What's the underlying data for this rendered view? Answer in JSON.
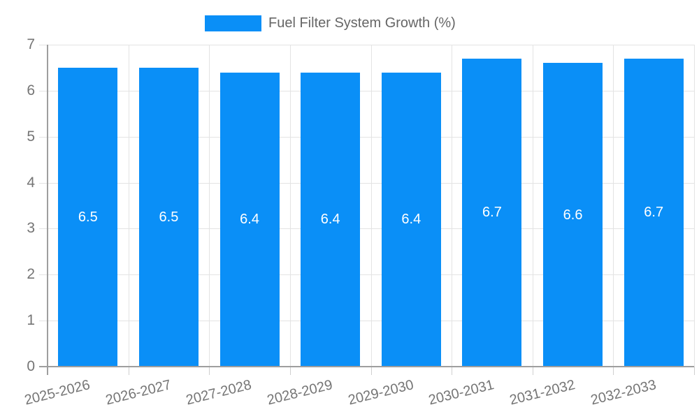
{
  "chart_data": {
    "type": "bar",
    "title": "Fuel Filter System Growth (%)",
    "categories": [
      "2025-2026",
      "2026-2027",
      "2027-2028",
      "2028-2029",
      "2029-2030",
      "2030-2031",
      "2031-2032",
      "2032-2033"
    ],
    "values": [
      6.5,
      6.5,
      6.4,
      6.4,
      6.4,
      6.7,
      6.6,
      6.7
    ],
    "value_labels": [
      "6.5",
      "6.5",
      "6.4",
      "6.4",
      "6.4",
      "6.7",
      "6.6",
      "6.7"
    ],
    "xlabel": "",
    "ylabel": "",
    "ylim": [
      0,
      7
    ],
    "yticks": [
      0,
      1,
      2,
      3,
      4,
      5,
      6,
      7
    ],
    "grid": true,
    "legend_position": "top",
    "colors": {
      "bar": "#0a8ff7",
      "gridline": "#e3e3e3",
      "axis_line": "#9e9e9e",
      "tick_mark": "#cfcfcf",
      "axis_text": "#757575",
      "legend_text": "#666666",
      "value_label_text": "#ffffff",
      "background": "#ffffff"
    }
  }
}
